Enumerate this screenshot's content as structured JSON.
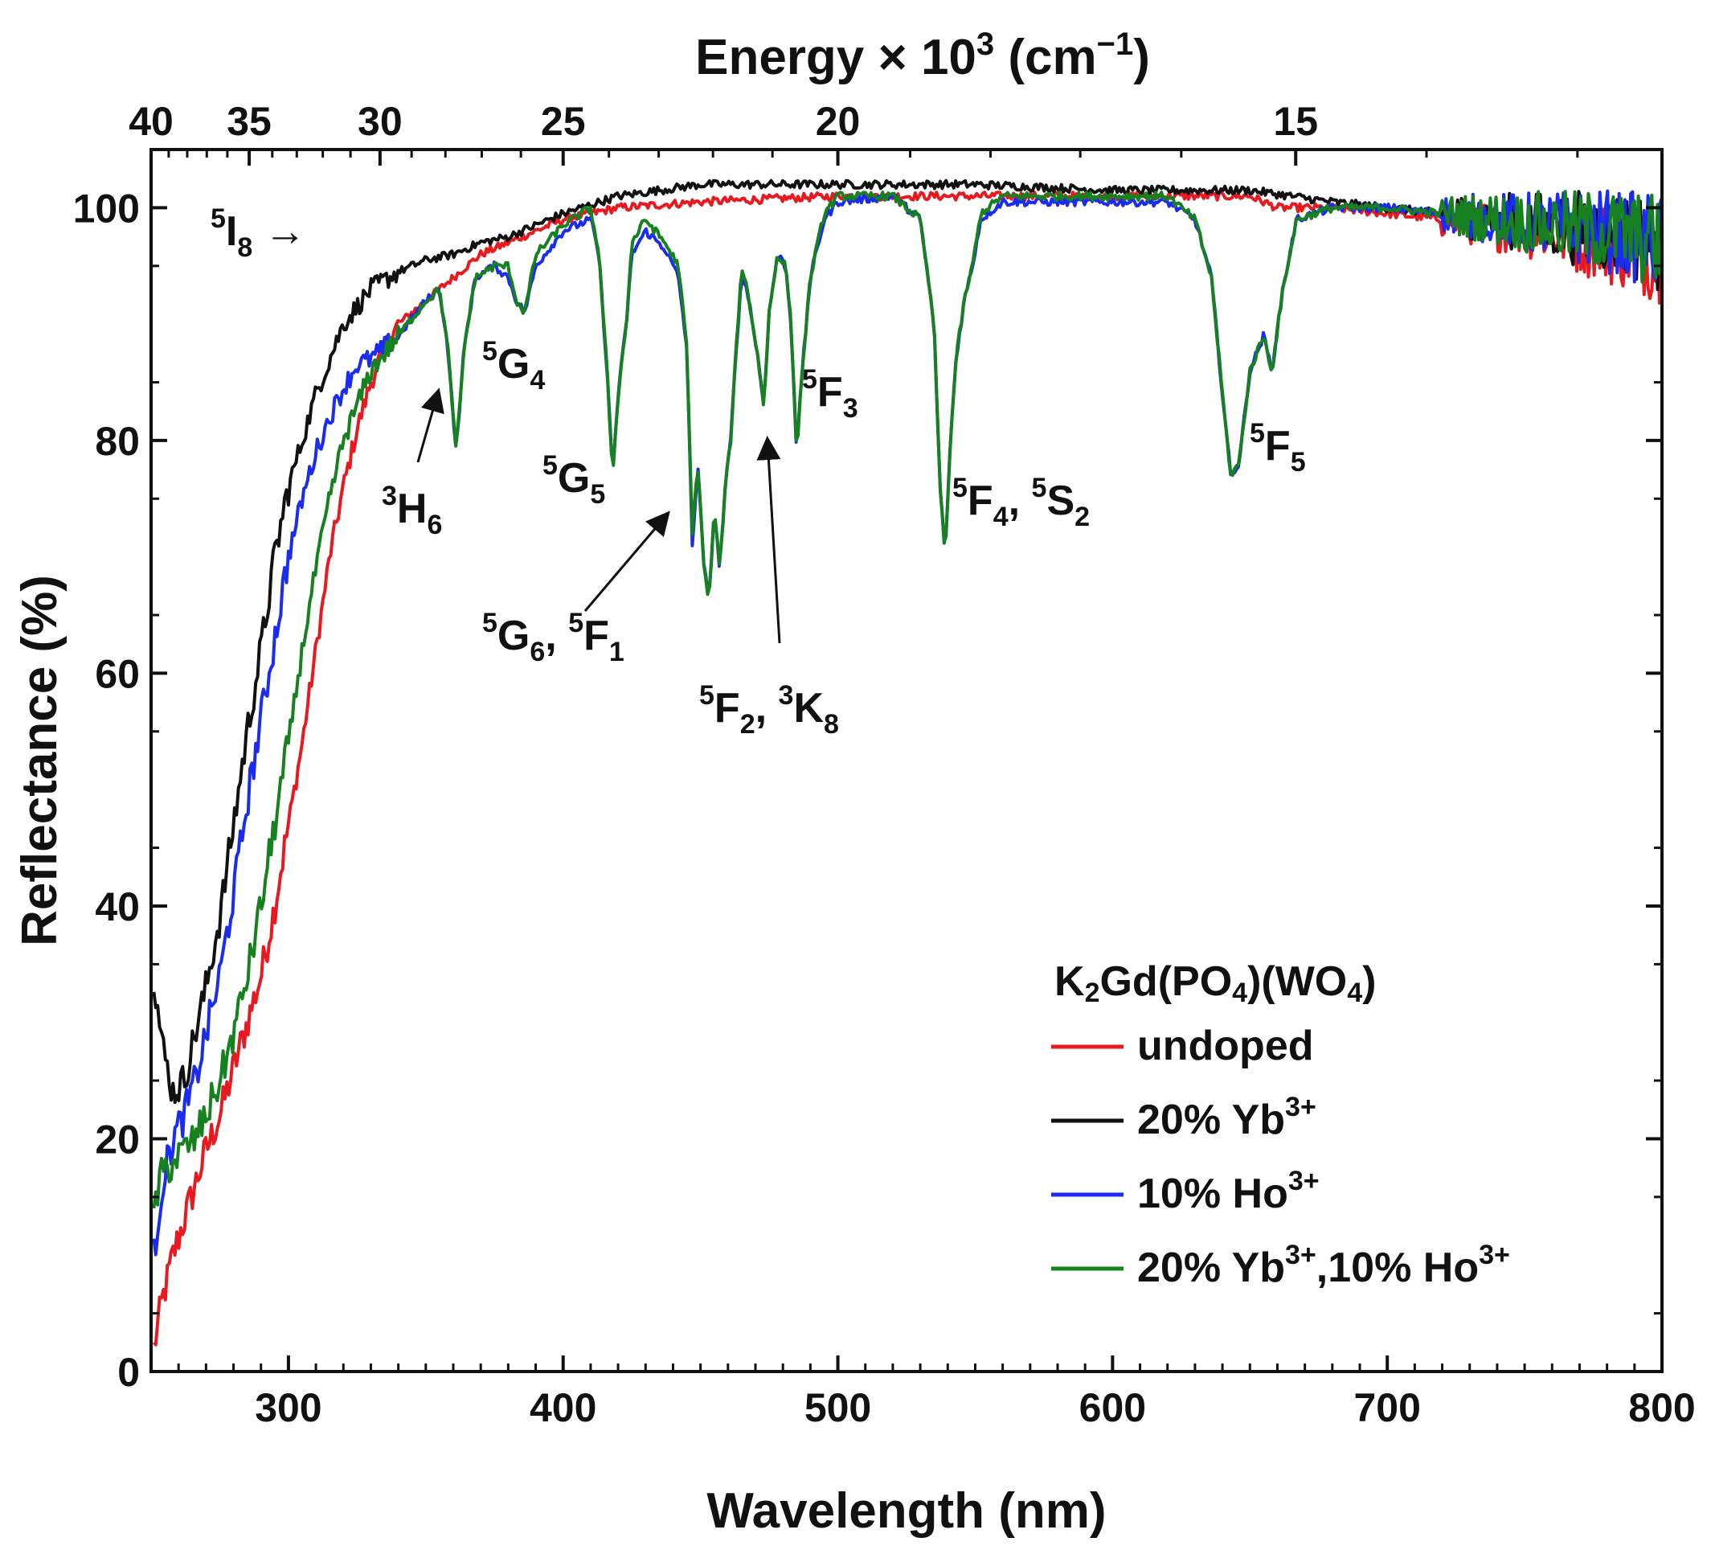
{
  "chart_data": {
    "type": "line",
    "xlabel": "Wavelength (nm)",
    "ylabel": "Reflectance (%)",
    "top_axis_label": "Energy × 10",
    "top_axis_label_sup": "3",
    "top_axis_label_unit": " (cm",
    "top_axis_label_unit_sup": "−1",
    "top_axis_label_end": ")",
    "xlim": [
      250,
      800
    ],
    "ylim": [
      0,
      105
    ],
    "x_ticks": [
      300,
      400,
      500,
      600,
      700,
      800
    ],
    "x_tick_labels": [
      "300",
      "400",
      "500",
      "600",
      "700",
      "800"
    ],
    "y_ticks": [
      0,
      20,
      40,
      60,
      80,
      100
    ],
    "y_tick_labels": [
      "0",
      "20",
      "40",
      "60",
      "80",
      "100"
    ],
    "top_ticks_kcm": [
      40,
      35,
      30,
      25,
      20,
      15
    ],
    "top_tick_labels": [
      "40",
      "35",
      "30",
      "25",
      "20",
      "15"
    ],
    "legend": {
      "title": "K2Gd(PO4)(WO4)",
      "placement": "bottom-right"
    },
    "series": [
      {
        "name": "undoped",
        "label_main": "undoped",
        "label_sup": "",
        "label_rest": "",
        "label_sup2": "",
        "color": "#e8191f",
        "points": [
          [
            251,
            2
          ],
          [
            254,
            6
          ],
          [
            258,
            10
          ],
          [
            262,
            13
          ],
          [
            266,
            16
          ],
          [
            270,
            19
          ],
          [
            275,
            22
          ],
          [
            280,
            26
          ],
          [
            285,
            30
          ],
          [
            290,
            34
          ],
          [
            295,
            40
          ],
          [
            300,
            47
          ],
          [
            305,
            54
          ],
          [
            310,
            62
          ],
          [
            315,
            70
          ],
          [
            320,
            76
          ],
          [
            325,
            81
          ],
          [
            330,
            85
          ],
          [
            335,
            88
          ],
          [
            340,
            90
          ],
          [
            350,
            92
          ],
          [
            360,
            94
          ],
          [
            370,
            96
          ],
          [
            380,
            97
          ],
          [
            390,
            98
          ],
          [
            400,
            99
          ],
          [
            420,
            100
          ],
          [
            450,
            100.5
          ],
          [
            500,
            101
          ],
          [
            550,
            101
          ],
          [
            600,
            101
          ],
          [
            650,
            101
          ],
          [
            660,
            100
          ],
          [
            680,
            100
          ],
          [
            700,
            99.5
          ],
          [
            720,
            99
          ],
          [
            740,
            98.5
          ],
          [
            760,
            98
          ],
          [
            780,
            97
          ],
          [
            800,
            96
          ]
        ]
      },
      {
        "name": "20% Yb3+",
        "label_main": "20% Yb",
        "label_sup": "3+",
        "label_rest": "",
        "label_sup2": "",
        "color": "#111111",
        "points": [
          [
            251,
            34
          ],
          [
            254,
            28
          ],
          [
            258,
            24
          ],
          [
            262,
            25
          ],
          [
            266,
            29
          ],
          [
            270,
            33
          ],
          [
            275,
            39
          ],
          [
            280,
            47
          ],
          [
            285,
            55
          ],
          [
            290,
            62
          ],
          [
            295,
            70
          ],
          [
            300,
            76
          ],
          [
            305,
            80
          ],
          [
            310,
            84
          ],
          [
            315,
            87
          ],
          [
            320,
            90
          ],
          [
            325,
            91.5
          ],
          [
            330,
            93
          ],
          [
            340,
            94.5
          ],
          [
            350,
            95.5
          ],
          [
            360,
            96
          ],
          [
            370,
            97
          ],
          [
            380,
            97.5
          ],
          [
            390,
            98.5
          ],
          [
            400,
            99.5
          ],
          [
            420,
            101
          ],
          [
            450,
            102
          ],
          [
            480,
            102
          ],
          [
            500,
            102
          ],
          [
            550,
            102
          ],
          [
            600,
            101.5
          ],
          [
            650,
            101.5
          ],
          [
            665,
            101
          ],
          [
            680,
            100.5
          ],
          [
            700,
            100
          ],
          [
            720,
            99.5
          ],
          [
            740,
            99
          ],
          [
            760,
            98.5
          ],
          [
            780,
            98
          ],
          [
            800,
            97
          ]
        ]
      },
      {
        "name": "10% Ho3+",
        "label_main": "10% Ho",
        "label_sup": "3+",
        "label_rest": "",
        "label_sup2": "",
        "color": "#1a2bf2",
        "points": [
          [
            251,
            10
          ],
          [
            254,
            16
          ],
          [
            258,
            20
          ],
          [
            262,
            22
          ],
          [
            266,
            25
          ],
          [
            270,
            29
          ],
          [
            275,
            34
          ],
          [
            280,
            41
          ],
          [
            285,
            49
          ],
          [
            290,
            56
          ],
          [
            295,
            63
          ],
          [
            300,
            70
          ],
          [
            305,
            75
          ],
          [
            310,
            79
          ],
          [
            315,
            82
          ],
          [
            320,
            84.5
          ],
          [
            325,
            86.5
          ],
          [
            330,
            87
          ],
          [
            340,
            89
          ],
          [
            350,
            92
          ],
          [
            355,
            93
          ],
          [
            358,
            88
          ],
          [
            361,
            79
          ],
          [
            364,
            88
          ],
          [
            368,
            94
          ],
          [
            375,
            95
          ],
          [
            380,
            94
          ],
          [
            383,
            92
          ],
          [
            386,
            91
          ],
          [
            390,
            95
          ],
          [
            400,
            98
          ],
          [
            410,
            99
          ],
          [
            413,
            96
          ],
          [
            416,
            86
          ],
          [
            418,
            77
          ],
          [
            420,
            84
          ],
          [
            423,
            90
          ],
          [
            425,
            96
          ],
          [
            430,
            98
          ],
          [
            437,
            96.5
          ],
          [
            442,
            94
          ],
          [
            445,
            88
          ],
          [
            447,
            71
          ],
          [
            449,
            78
          ],
          [
            451,
            70
          ],
          [
            453,
            66
          ],
          [
            455,
            74
          ],
          [
            457,
            69
          ],
          [
            459,
            76
          ],
          [
            461,
            80
          ],
          [
            463,
            88
          ],
          [
            465,
            94
          ],
          [
            467,
            93
          ],
          [
            469,
            90
          ],
          [
            471,
            87
          ],
          [
            473,
            83
          ],
          [
            475,
            91
          ],
          [
            478,
            96
          ],
          [
            481,
            95
          ],
          [
            483,
            90
          ],
          [
            485,
            79
          ],
          [
            487,
            86
          ],
          [
            490,
            94
          ],
          [
            495,
            99
          ],
          [
            500,
            100.5
          ],
          [
            520,
            101
          ],
          [
            530,
            99
          ],
          [
            535,
            90
          ],
          [
            537,
            77
          ],
          [
            539,
            70
          ],
          [
            541,
            80
          ],
          [
            543,
            87
          ],
          [
            546,
            92
          ],
          [
            549,
            95
          ],
          [
            552,
            99
          ],
          [
            560,
            100.5
          ],
          [
            600,
            100.5
          ],
          [
            620,
            100.5
          ],
          [
            630,
            99
          ],
          [
            636,
            94
          ],
          [
            640,
            84
          ],
          [
            643,
            77
          ],
          [
            646,
            78
          ],
          [
            650,
            86
          ],
          [
            655,
            89
          ],
          [
            658,
            86
          ],
          [
            662,
            93
          ],
          [
            667,
            99
          ],
          [
            680,
            100
          ],
          [
            700,
            100
          ],
          [
            720,
            99.5
          ],
          [
            740,
            99
          ],
          [
            760,
            98.5
          ],
          [
            780,
            98
          ],
          [
            800,
            97
          ]
        ]
      },
      {
        "name": "20% Yb3+,10% Ho3+",
        "label_main": "20% Yb",
        "label_sup": "3+",
        "label_rest": ",10% Ho",
        "label_sup2": "3+",
        "color": "#17811f",
        "points": [
          [
            251,
            14
          ],
          [
            254,
            17
          ],
          [
            258,
            18
          ],
          [
            262,
            19
          ],
          [
            266,
            20
          ],
          [
            270,
            22
          ],
          [
            275,
            25
          ],
          [
            280,
            29
          ],
          [
            285,
            34
          ],
          [
            290,
            40
          ],
          [
            295,
            47
          ],
          [
            300,
            54
          ],
          [
            305,
            62
          ],
          [
            310,
            69
          ],
          [
            315,
            75
          ],
          [
            320,
            80
          ],
          [
            325,
            83
          ],
          [
            330,
            86
          ],
          [
            340,
            89
          ],
          [
            350,
            92
          ],
          [
            355,
            93
          ],
          [
            358,
            88
          ],
          [
            361,
            79
          ],
          [
            364,
            88
          ],
          [
            368,
            94
          ],
          [
            375,
            95
          ],
          [
            380,
            95
          ],
          [
            383,
            92
          ],
          [
            386,
            91
          ],
          [
            390,
            96
          ],
          [
            400,
            98.5
          ],
          [
            410,
            100
          ],
          [
            413,
            96
          ],
          [
            416,
            86
          ],
          [
            418,
            77
          ],
          [
            420,
            84
          ],
          [
            423,
            90
          ],
          [
            425,
            97
          ],
          [
            430,
            99
          ],
          [
            437,
            97
          ],
          [
            442,
            95
          ],
          [
            445,
            88
          ],
          [
            447,
            72
          ],
          [
            449,
            78
          ],
          [
            451,
            70
          ],
          [
            453,
            66
          ],
          [
            455,
            74
          ],
          [
            457,
            69
          ],
          [
            459,
            76
          ],
          [
            461,
            80
          ],
          [
            463,
            88
          ],
          [
            465,
            95
          ],
          [
            467,
            93
          ],
          [
            469,
            90
          ],
          [
            471,
            87
          ],
          [
            473,
            83
          ],
          [
            475,
            91
          ],
          [
            478,
            96
          ],
          [
            481,
            95
          ],
          [
            483,
            90
          ],
          [
            485,
            79
          ],
          [
            487,
            86
          ],
          [
            490,
            94
          ],
          [
            495,
            99.5
          ],
          [
            500,
            101
          ],
          [
            520,
            101
          ],
          [
            530,
            99
          ],
          [
            535,
            90
          ],
          [
            537,
            77
          ],
          [
            539,
            70
          ],
          [
            541,
            80
          ],
          [
            543,
            87
          ],
          [
            546,
            92
          ],
          [
            549,
            95
          ],
          [
            552,
            99.5
          ],
          [
            560,
            101
          ],
          [
            600,
            101
          ],
          [
            620,
            101
          ],
          [
            630,
            99
          ],
          [
            636,
            94
          ],
          [
            640,
            84
          ],
          [
            643,
            77
          ],
          [
            646,
            78
          ],
          [
            650,
            86
          ],
          [
            655,
            89
          ],
          [
            658,
            86
          ],
          [
            662,
            93
          ],
          [
            667,
            99
          ],
          [
            680,
            100
          ],
          [
            700,
            100
          ],
          [
            720,
            99.5
          ],
          [
            740,
            99
          ],
          [
            760,
            98.5
          ],
          [
            780,
            98
          ],
          [
            800,
            97
          ]
        ]
      }
    ],
    "annotations": [
      {
        "id": "I8",
        "sup": "5",
        "main": "I",
        "sub": "8",
        "extra_sup": "",
        "extra_main": "",
        "extra_sub": "",
        "suffix": " →"
      },
      {
        "id": "H6",
        "sup": "3",
        "main": "H",
        "sub": "6",
        "extra_sup": "",
        "extra_main": "",
        "extra_sub": "",
        "suffix": ""
      },
      {
        "id": "G4",
        "sup": "5",
        "main": "G",
        "sub": "4",
        "extra_sup": "",
        "extra_main": "",
        "extra_sub": "",
        "suffix": ""
      },
      {
        "id": "G5",
        "sup": "5",
        "main": "G",
        "sub": "5",
        "extra_sup": "",
        "extra_main": "",
        "extra_sub": "",
        "suffix": ""
      },
      {
        "id": "G6F1",
        "sup": "5",
        "main": "G",
        "sub": "6",
        "extra_sup": "5",
        "extra_main": "F",
        "extra_sub": "1",
        "suffix": ""
      },
      {
        "id": "F2K8",
        "sup": "5",
        "main": "F",
        "sub": "2",
        "extra_sup": "3",
        "extra_main": "K",
        "extra_sub": "8",
        "suffix": ""
      },
      {
        "id": "F3",
        "sup": "5",
        "main": "F",
        "sub": "3",
        "extra_sup": "",
        "extra_main": "",
        "extra_sub": "",
        "suffix": ""
      },
      {
        "id": "F4S2",
        "sup": "5",
        "main": "F",
        "sub": "4",
        "extra_sup": "5",
        "extra_main": "S",
        "extra_sub": "2",
        "suffix": ""
      },
      {
        "id": "F5",
        "sup": "5",
        "main": "F",
        "sub": "5",
        "extra_sup": "",
        "extra_main": "",
        "extra_sub": "",
        "suffix": ""
      }
    ]
  }
}
